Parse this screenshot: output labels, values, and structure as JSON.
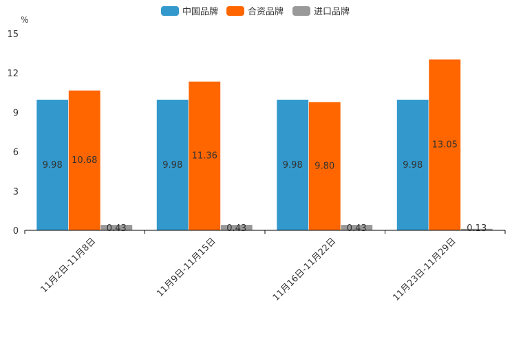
{
  "chart_data": {
    "type": "bar",
    "unit": "%",
    "categories": [
      "11月2日-11月8日",
      "11月9日-11月15日",
      "11月16日-11月22日",
      "11月23日-11月29日"
    ],
    "series": [
      {
        "name": "中国品牌",
        "color": "#3399CC",
        "values": [
          9.98,
          9.98,
          9.98,
          9.98
        ],
        "labels": [
          "9.98",
          "9.98",
          "9.98",
          "9.98"
        ]
      },
      {
        "name": "合资品牌",
        "color": "#FF6600",
        "values": [
          10.68,
          11.36,
          9.8,
          13.05
        ],
        "labels": [
          "10.68",
          "11.36",
          "9.80",
          "13.05"
        ]
      },
      {
        "name": "进口品牌",
        "color": "#999999",
        "values": [
          0.43,
          0.43,
          0.43,
          0.13
        ],
        "labels": [
          "0.43",
          "0.43",
          "0.43",
          "0.13"
        ]
      }
    ],
    "yticks": [
      0,
      3,
      6,
      9,
      12,
      15
    ],
    "ytick_labels": [
      "0",
      "3",
      "6",
      "9",
      "12",
      "15"
    ],
    "ylim": [
      0,
      15
    ],
    "legend_position": "top-center",
    "grid": false
  }
}
